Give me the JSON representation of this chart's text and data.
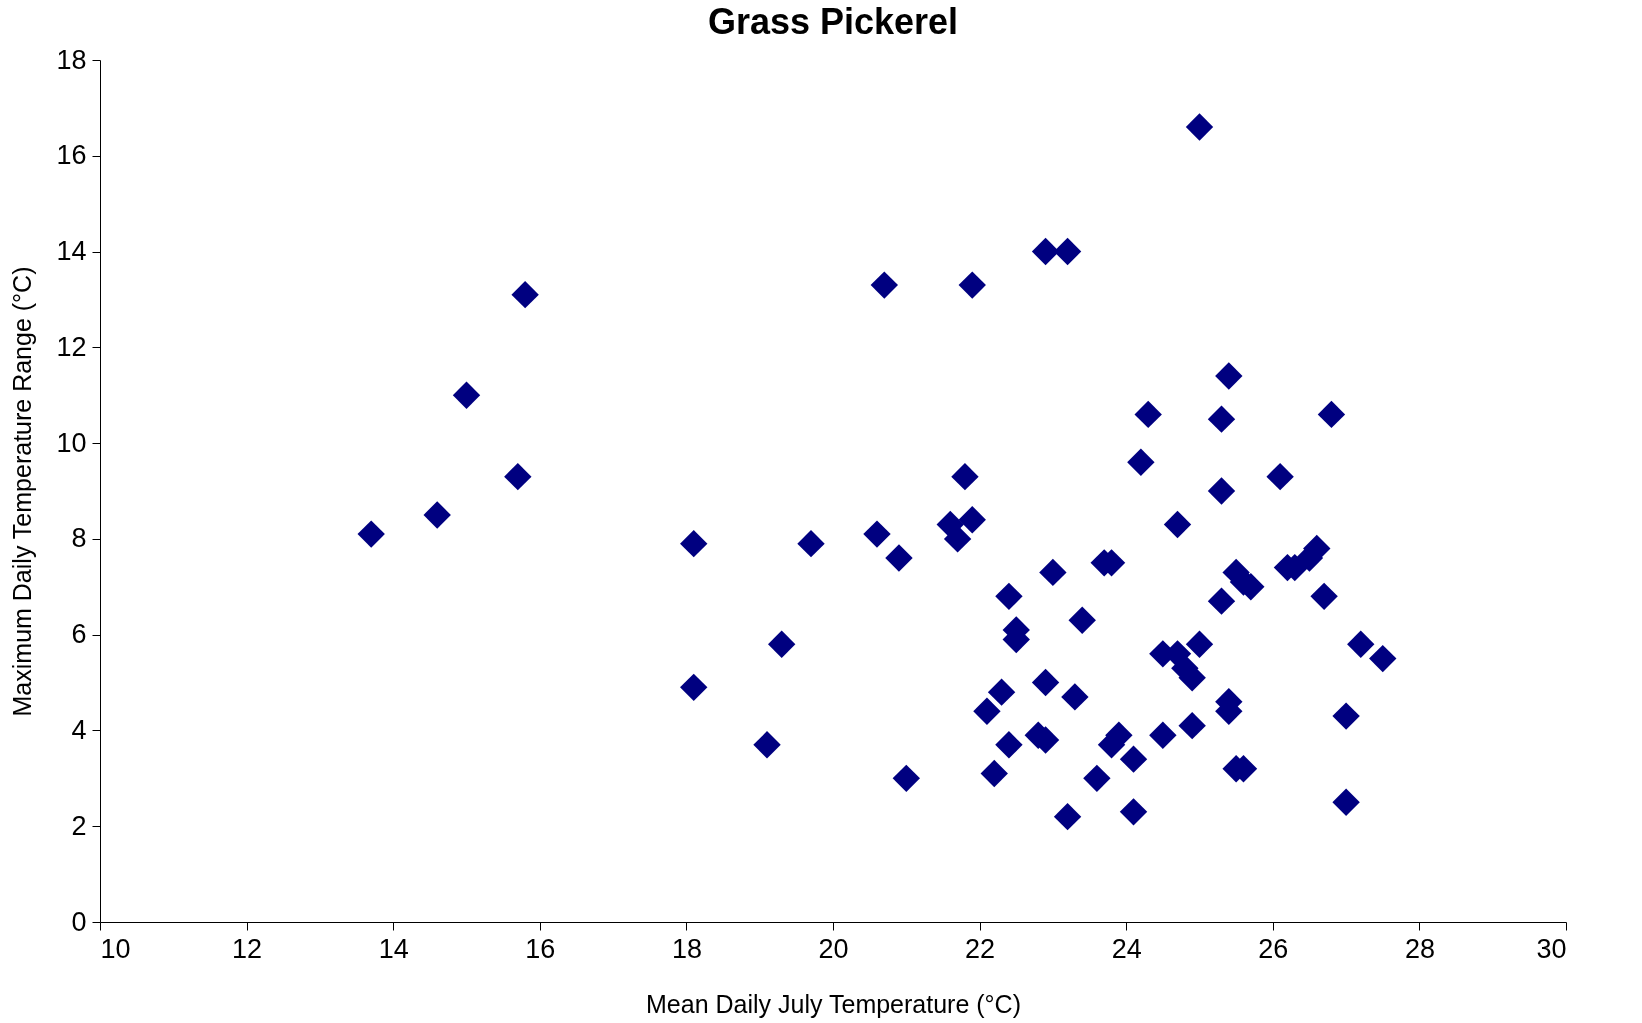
{
  "chart_data": {
    "type": "scatter",
    "title": "Grass Pickerel",
    "xlabel": "Mean Daily July Temperature (°C)",
    "ylabel": "Maximum Daily Temperature Range (°C)",
    "x": [
      13.7,
      14.6,
      15.0,
      15.7,
      15.8,
      18.1,
      18.1,
      19.1,
      19.3,
      19.7,
      20.6,
      20.7,
      20.9,
      21.0,
      21.6,
      21.7,
      21.8,
      21.9,
      21.9,
      22.1,
      22.2,
      22.3,
      22.4,
      22.4,
      22.5,
      22.5,
      22.8,
      22.9,
      22.9,
      22.9,
      23.0,
      23.2,
      23.2,
      23.3,
      23.4,
      23.6,
      23.7,
      23.8,
      23.8,
      23.9,
      24.1,
      24.1,
      24.2,
      24.3,
      24.5,
      24.5,
      24.7,
      24.7,
      24.8,
      24.9,
      25.0,
      24.9,
      25.0,
      25.3,
      25.3,
      25.3,
      25.4,
      25.4,
      25.4,
      25.5,
      25.5,
      25.6,
      25.6,
      25.7,
      26.1,
      26.2,
      26.3,
      26.5,
      26.6,
      26.7,
      26.8,
      27.0,
      27.0,
      27.2,
      27.5
    ],
    "series": [
      {
        "color": "#000080",
        "values": [
          8.1,
          8.5,
          11.0,
          9.3,
          13.1,
          7.9,
          4.9,
          3.7,
          5.8,
          7.9,
          8.1,
          13.3,
          7.6,
          3.0,
          8.3,
          8.0,
          9.3,
          8.4,
          13.3,
          4.4,
          3.1,
          4.8,
          6.8,
          3.7,
          6.1,
          5.9,
          3.9,
          5.0,
          14.0,
          3.8,
          7.3,
          14.0,
          2.2,
          4.7,
          6.3,
          3.0,
          7.5,
          7.5,
          3.7,
          3.9,
          3.4,
          2.3,
          9.6,
          10.6,
          5.6,
          3.9,
          8.3,
          5.6,
          5.3,
          5.1,
          5.8,
          4.1,
          16.6,
          10.5,
          9.0,
          6.7,
          4.6,
          4.4,
          11.4,
          3.2,
          7.3,
          7.1,
          3.2,
          7.0,
          9.3,
          7.4,
          7.4,
          7.6,
          7.8,
          6.8,
          10.6,
          4.3,
          2.5,
          5.8,
          5.5
        ]
      }
    ],
    "xlim": [
      10,
      30
    ],
    "xticks": [
      10,
      12,
      14,
      16,
      18,
      20,
      22,
      24,
      26,
      28,
      30
    ],
    "ylim": [
      0,
      18
    ],
    "yticks": [
      0,
      2,
      4,
      6,
      8,
      10,
      12,
      14,
      16,
      18
    ],
    "marker": "diamond",
    "grid": false,
    "legend": false
  }
}
